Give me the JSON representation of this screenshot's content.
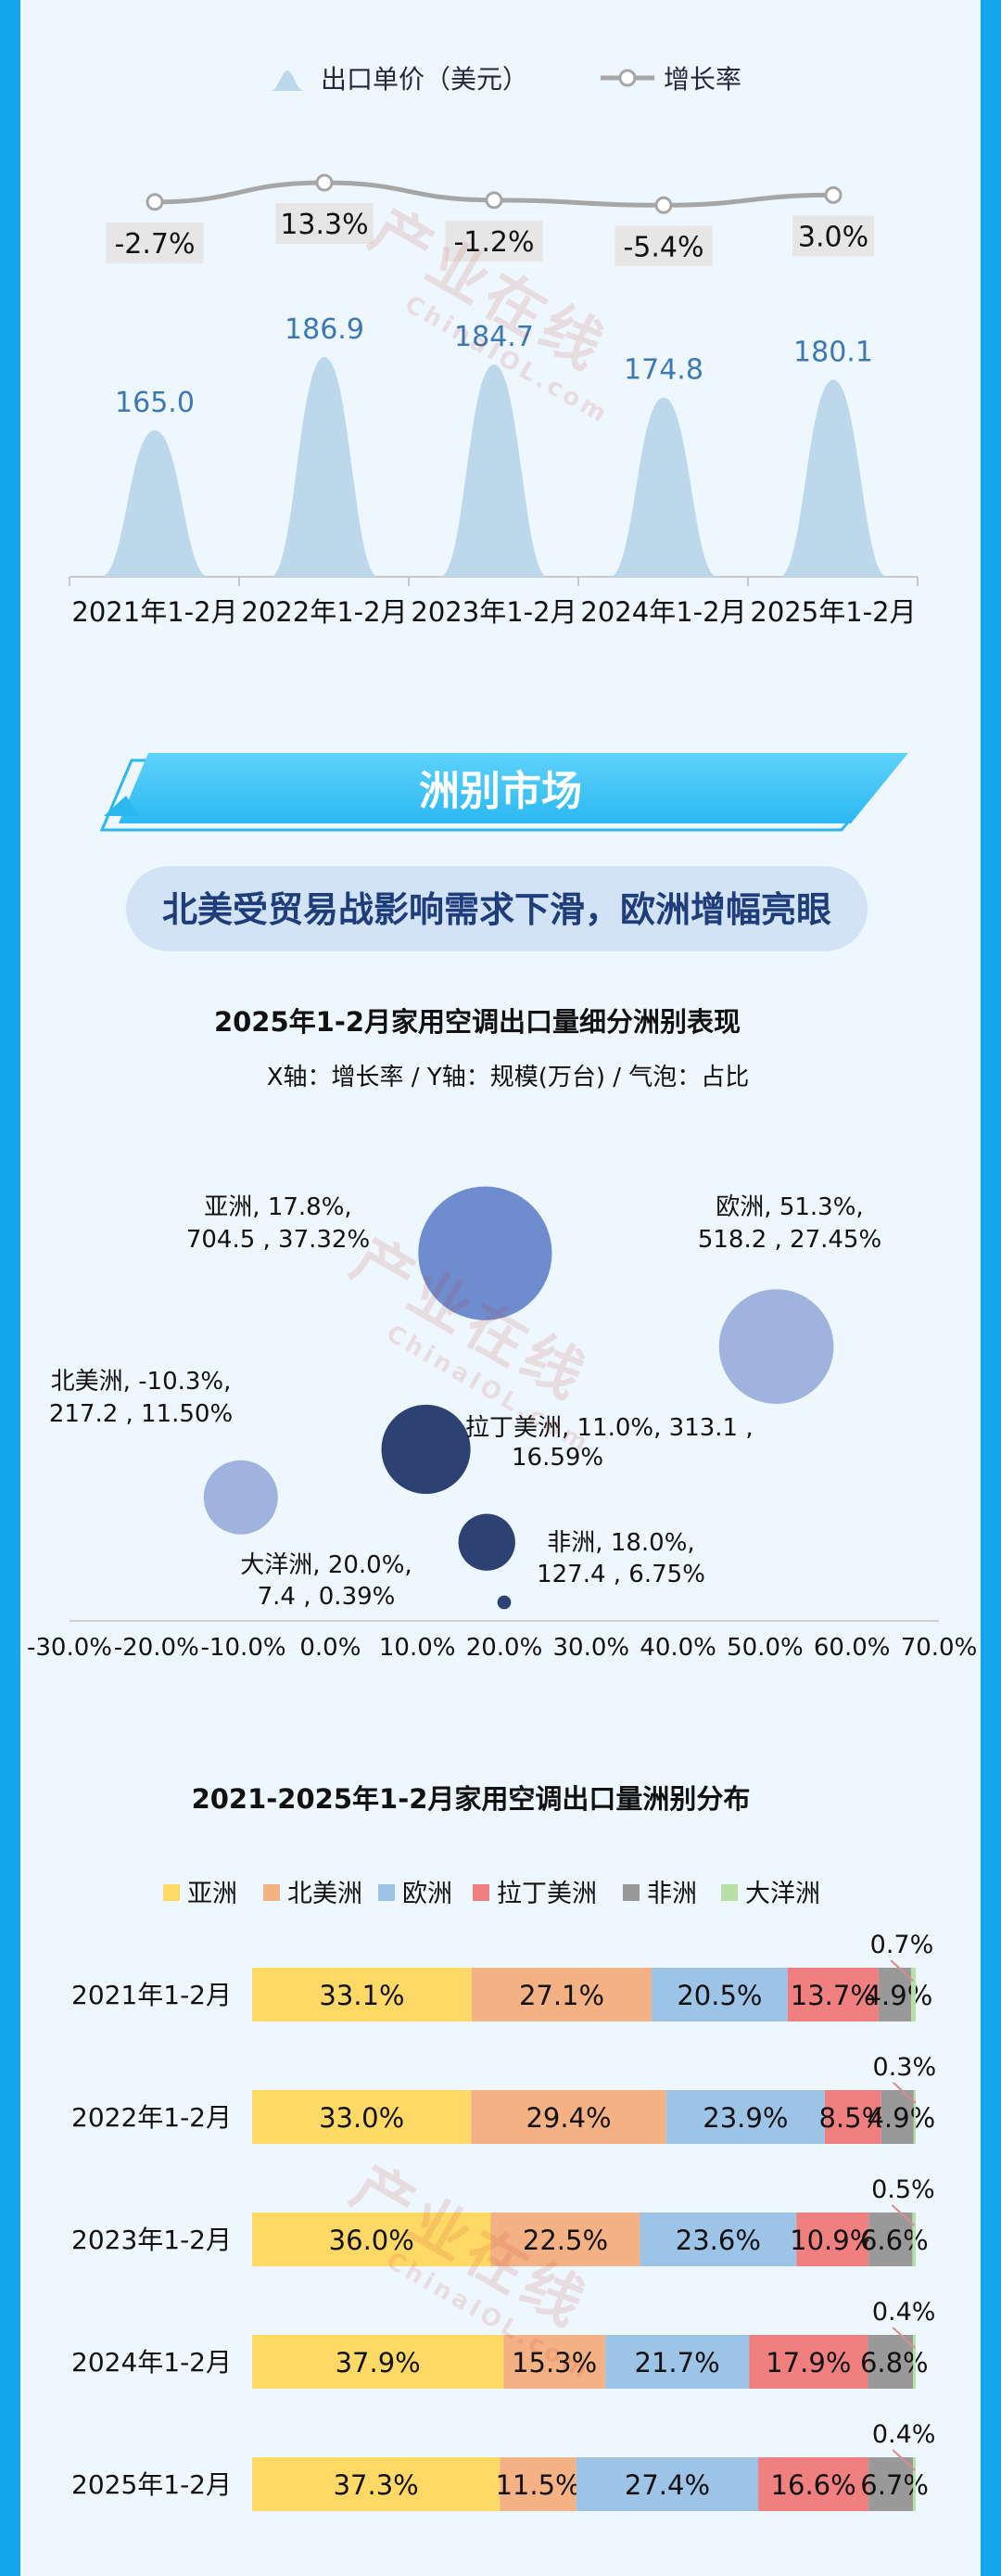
{
  "price_chart": {
    "legend": {
      "bar": "出口单价（美元）",
      "line": "增长率"
    },
    "colors": {
      "bar": "#bcd8ea",
      "value": "#3b78b4",
      "line": "#a6a6a6",
      "label_bg": "#e6e6e6"
    }
  },
  "section": {
    "title": "洲别市场",
    "subtitle": "北美受贸易战影响需求下滑，欧洲增幅亮眼"
  },
  "bubble": {
    "title": "2025年1-2月家用空调出口量细分洲别表现",
    "subtitle": "X轴：增长率 / Y轴：规模(万台) / 气泡：占比"
  },
  "stack": {
    "title": "2021-2025年1-2月家用空调出口量洲别分布"
  },
  "watermark": {
    "mark": "产业在线",
    "site": "ChinaIOL.com"
  },
  "chart_data": [
    {
      "type": "bar",
      "categories": [
        "2021年1-2月",
        "2022年1-2月",
        "2023年1-2月",
        "2024年1-2月",
        "2025年1-2月"
      ],
      "series": [
        {
          "name": "出口单价（美元）",
          "values": [
            165.0,
            186.9,
            184.7,
            174.8,
            180.1
          ],
          "labels": [
            "165.0",
            "186.9",
            "184.7",
            "174.8",
            "180.1"
          ]
        },
        {
          "name": "增长率",
          "type": "line",
          "values": [
            -2.7,
            13.3,
            -1.2,
            -5.4,
            3.0
          ],
          "labels": [
            "-2.7%",
            "13.3%",
            "-1.2%",
            "-5.4%",
            "3.0%"
          ]
        }
      ]
    },
    {
      "type": "scatter",
      "title": "2025年1-2月家用空调出口量细分洲别表现",
      "xlabel": "X轴：增长率",
      "ylabel": "Y轴：规模(万台)",
      "xlim": [
        -30,
        70
      ],
      "xticks": [
        "-30.0%",
        "-20.0%",
        "-10.0%",
        "0.0%",
        "10.0%",
        "20.0%",
        "30.0%",
        "40.0%",
        "50.0%",
        "60.0%",
        "70.0%"
      ],
      "points": [
        {
          "name": "亚洲",
          "x": 17.8,
          "y": 704.5,
          "share": 37.32,
          "color": "#6f8ccf",
          "label1": "亚洲, 17.8%,",
          "label2": "704.5 , 37.32%"
        },
        {
          "name": "欧洲",
          "x": 51.3,
          "y": 518.2,
          "share": 27.45,
          "color": "#9fb3de",
          "label1": "欧洲, 51.3%,",
          "label2": "518.2 , 27.45%"
        },
        {
          "name": "拉丁美洲",
          "x": 11.0,
          "y": 313.1,
          "share": 16.59,
          "color": "#2d4273",
          "label1": "拉丁美洲, 11.0%, 313.1 ,",
          "label2": "16.59%"
        },
        {
          "name": "北美洲",
          "x": -10.3,
          "y": 217.2,
          "share": 11.5,
          "color": "#9fb3de",
          "label1": "北美洲, -10.3%,",
          "label2": "217.2 , 11.50%"
        },
        {
          "name": "非洲",
          "x": 18.0,
          "y": 127.4,
          "share": 6.75,
          "color": "#2d4273",
          "label1": "非洲, 18.0%,",
          "label2": "127.4 , 6.75%"
        },
        {
          "name": "大洋洲",
          "x": 20.0,
          "y": 7.4,
          "share": 0.39,
          "color": "#2d4273",
          "label1": "大洋洲, 20.0%,",
          "label2": "7.4 , 0.39%"
        }
      ]
    },
    {
      "type": "bar",
      "stacked": true,
      "orientation": "horizontal",
      "title": "2021-2025年1-2月家用空调出口量洲别分布",
      "categories": [
        "2021年1-2月",
        "2022年1-2月",
        "2023年1-2月",
        "2024年1-2月",
        "2025年1-2月"
      ],
      "series": [
        {
          "name": "亚洲",
          "color": "#ffd966",
          "values": [
            33.1,
            33.0,
            36.0,
            37.9,
            37.3
          ]
        },
        {
          "name": "北美洲",
          "color": "#f4b183",
          "values": [
            27.1,
            29.4,
            22.5,
            15.3,
            11.5
          ]
        },
        {
          "name": "欧洲",
          "color": "#9dc3e6",
          "values": [
            20.5,
            23.9,
            23.6,
            21.7,
            27.4
          ]
        },
        {
          "name": "拉丁美洲",
          "color": "#f08080",
          "values": [
            13.7,
            8.5,
            10.9,
            17.9,
            16.6
          ]
        },
        {
          "name": "非洲",
          "color": "#999999",
          "values": [
            4.9,
            4.9,
            6.6,
            6.8,
            6.7
          ]
        },
        {
          "name": "大洋洲",
          "color": "#b8e0a6",
          "values": [
            0.7,
            0.3,
            0.5,
            0.4,
            0.4
          ]
        }
      ]
    }
  ]
}
